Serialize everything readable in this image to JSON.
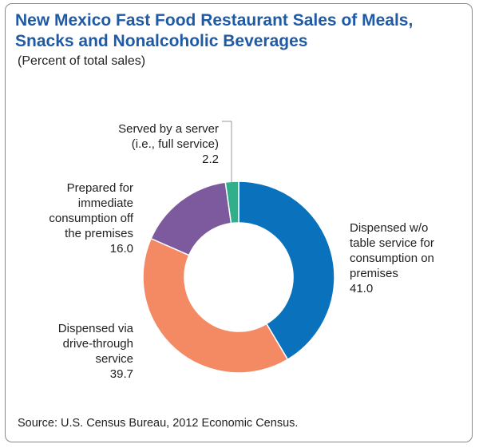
{
  "chart_data": {
    "type": "pie",
    "variant": "donut",
    "title": "New Mexico Fast Food Restaurant Sales of Meals, Snacks and Nonalcoholic Beverages",
    "subtitle": "(Percent of total sales)",
    "slices": [
      {
        "label": "Dispensed w/o table service for consumption on premises",
        "value": 41.0,
        "value_text": "41.0",
        "color": "#0a72bd"
      },
      {
        "label": "Dispensed via drive-through service",
        "value": 39.7,
        "value_text": "39.7",
        "color": "#f48a64"
      },
      {
        "label": "Prepared for immediate consumption off the premises",
        "value": 16.0,
        "value_text": "16.0",
        "color": "#7d5a9e"
      },
      {
        "label": "Served by a server (i.e., full service)",
        "value": 2.2,
        "value_text": "2.2",
        "color": "#2fb08a"
      }
    ],
    "source": "Source: U.S. Census Bureau, 2012 Economic Census."
  },
  "labels": {
    "slice0": "Dispensed w/o\ntable service for\nconsumption on\npremises",
    "slice1": "Dispensed via\ndrive-through\nservice",
    "slice2": "Prepared for\nimmediate\nconsumption off\nthe premises",
    "slice3": "Served by a server\n(i.e., full service)"
  }
}
